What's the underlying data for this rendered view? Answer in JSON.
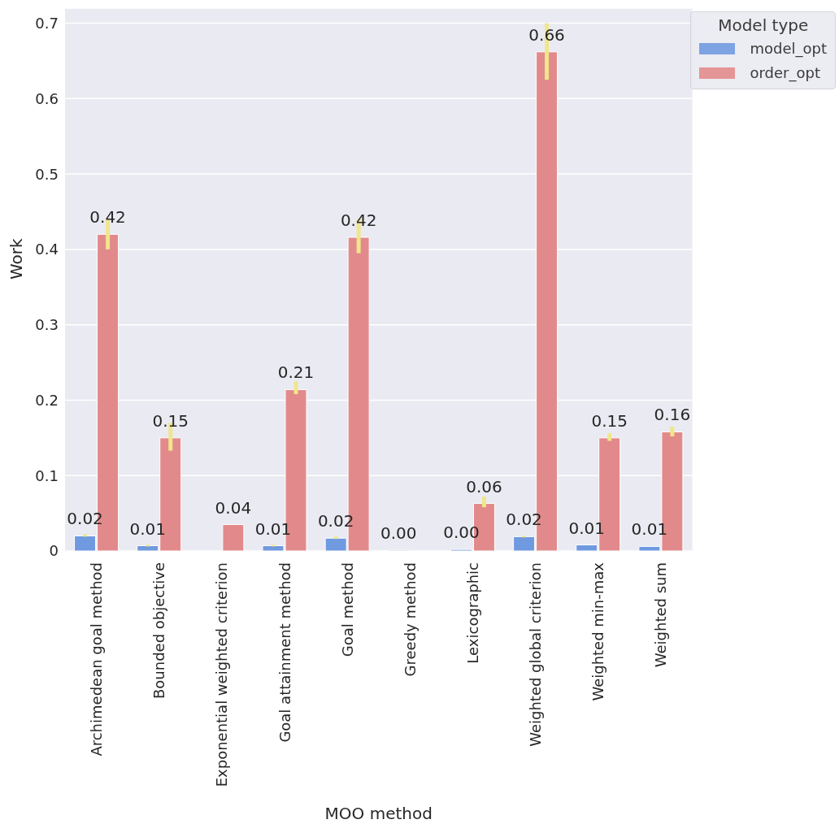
{
  "chart_data": {
    "type": "bar",
    "xlabel": "MOO method",
    "ylabel": "Work",
    "legend_title": "Model type",
    "legend": "top right",
    "grid": "y",
    "categories": [
      "Archimedean goal method",
      "Bounded objective",
      "Exponential weighted criterion",
      "Goal attainment method",
      "Goal method",
      "Greedy method",
      "Lexicographic",
      "Weighted global criterion",
      "Weighted min-max",
      "Weighted sum"
    ],
    "ylim": [
      0,
      0.72
    ],
    "yticks": [
      0,
      0.1,
      0.2,
      0.3,
      0.4,
      0.5,
      0.6,
      0.7
    ],
    "series": [
      {
        "name": "model_opt",
        "color": "#6f9ae0",
        "values": [
          0.02,
          0.007,
          null,
          0.007,
          0.017,
          0.001,
          0.002,
          0.019,
          0.008,
          0.006
        ],
        "errors": [
          [
            0.019,
            0.022
          ],
          [
            0.006,
            0.008
          ],
          null,
          [
            0.006,
            0.008
          ],
          [
            0.016,
            0.019
          ],
          null,
          null,
          [
            0.018,
            0.02
          ],
          null,
          null
        ],
        "value_labels": [
          "0.02",
          "0.01",
          null,
          "0.01",
          "0.02",
          "0.00",
          "0.00",
          "0.02",
          "0.01",
          "0.01"
        ]
      },
      {
        "name": "order_opt",
        "color": "#e28a8b",
        "values": [
          0.42,
          0.15,
          0.035,
          0.214,
          0.416,
          null,
          0.063,
          0.662,
          0.15,
          0.158
        ],
        "errors": [
          [
            0.4,
            0.44
          ],
          [
            0.133,
            0.17
          ],
          null,
          [
            0.208,
            0.225
          ],
          [
            0.395,
            0.44
          ],
          null,
          [
            0.058,
            0.072
          ],
          [
            0.625,
            0.7
          ],
          [
            0.146,
            0.156
          ],
          [
            0.152,
            0.165
          ]
        ],
        "value_labels": [
          "0.42",
          "0.15",
          "0.04",
          "0.21",
          "0.42",
          null,
          "0.06",
          "0.66",
          "0.15",
          "0.16"
        ]
      }
    ]
  }
}
